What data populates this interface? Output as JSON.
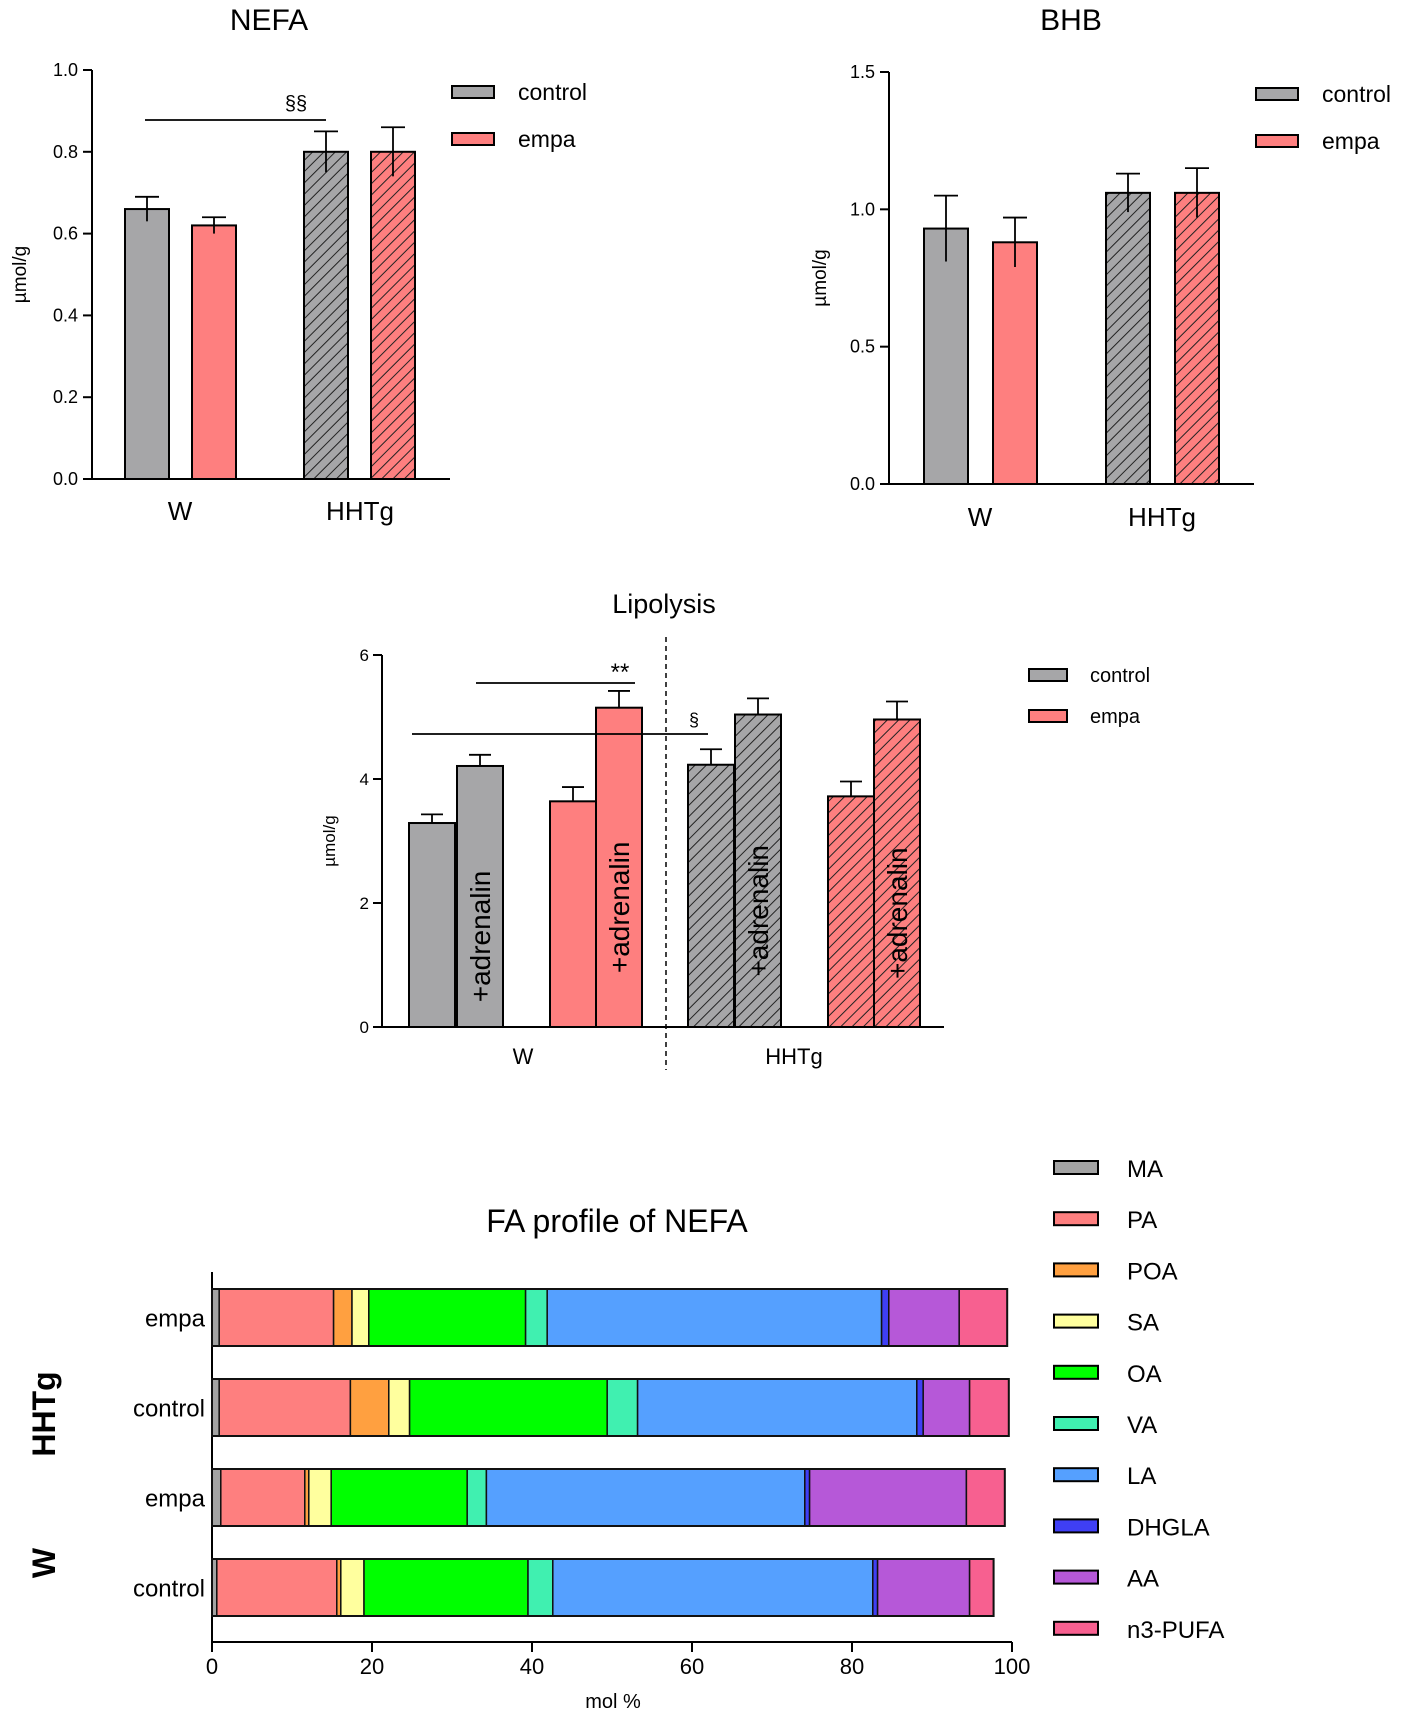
{
  "colors": {
    "control": "#a6a6a8",
    "empa": "#fe7f7f",
    "MA": "#a3a3a3",
    "PA": "#fe7f7f",
    "POA": "#ffa040",
    "SA": "#ffff9e",
    "OA": "#00ff00",
    "VA": "#40f0b0",
    "LA": "#55a0ff",
    "DHGLA": "#3f3ff5",
    "AA": "#b658d8",
    "n3-PUFA": "#f76090"
  },
  "chart_data": [
    {
      "id": "nefa",
      "type": "bar",
      "title": "NEFA",
      "ylabel": "µmol/g",
      "ylim": [
        0,
        1.0
      ],
      "yticks": [
        "0.0",
        "0.2",
        "0.4",
        "0.6",
        "0.8",
        "1.0"
      ],
      "categories": [
        "W",
        "HHTg"
      ],
      "legend": [
        "control",
        "empa"
      ],
      "legend_placement": "top-right",
      "series": [
        {
          "name": "control",
          "values": [
            0.66,
            0.8
          ],
          "errors": [
            0.03,
            0.05
          ]
        },
        {
          "name": "empa",
          "values": [
            0.62,
            0.8
          ],
          "errors": [
            0.02,
            0.06
          ]
        }
      ],
      "hatched_category": "HHTg",
      "annotations": [
        {
          "text": "§§",
          "from": "W control",
          "to": "HHTg control"
        }
      ]
    },
    {
      "id": "bhb",
      "type": "bar",
      "title": "BHB",
      "ylabel": "µmol/g",
      "ylim": [
        0,
        1.5
      ],
      "yticks": [
        "0.0",
        "0.5",
        "1.0",
        "1.5"
      ],
      "categories": [
        "W",
        "HHTg"
      ],
      "legend": [
        "control",
        "empa"
      ],
      "legend_placement": "top-right",
      "series": [
        {
          "name": "control",
          "values": [
            0.93,
            1.06
          ],
          "errors": [
            0.12,
            0.07
          ]
        },
        {
          "name": "empa",
          "values": [
            0.88,
            1.06
          ],
          "errors": [
            0.09,
            0.09
          ]
        }
      ],
      "hatched_category": "HHTg",
      "annotations": []
    },
    {
      "id": "lipolysis",
      "type": "bar",
      "title": "Lipolysis",
      "ylabel": "µmol/g",
      "ylim": [
        0,
        6
      ],
      "yticks": [
        "0",
        "2",
        "4",
        "6"
      ],
      "categories": [
        "W",
        "HHTg"
      ],
      "legend": [
        "control",
        "empa"
      ],
      "legend_placement": "top-right",
      "bar_label": "+adrenalin",
      "bars": [
        {
          "group": "W",
          "series": "control",
          "adrenalin": false,
          "value": 3.29,
          "error": 0.14
        },
        {
          "group": "W",
          "series": "control",
          "adrenalin": true,
          "value": 4.21,
          "error": 0.18
        },
        {
          "group": "W",
          "series": "empa",
          "adrenalin": false,
          "value": 3.64,
          "error": 0.23
        },
        {
          "group": "W",
          "series": "empa",
          "adrenalin": true,
          "value": 5.15,
          "error": 0.27
        },
        {
          "group": "HHTg",
          "series": "control",
          "adrenalin": false,
          "value": 4.23,
          "error": 0.25
        },
        {
          "group": "HHTg",
          "series": "control",
          "adrenalin": true,
          "value": 5.04,
          "error": 0.26
        },
        {
          "group": "HHTg",
          "series": "empa",
          "adrenalin": false,
          "value": 3.72,
          "error": 0.24
        },
        {
          "group": "HHTg",
          "series": "empa",
          "adrenalin": true,
          "value": 4.96,
          "error": 0.29
        }
      ],
      "annotations": [
        {
          "text": "**",
          "from": "W control +adrenalin",
          "to": "W empa +adrenalin"
        },
        {
          "text": "§",
          "from": "W control",
          "to": "HHTg control"
        }
      ]
    },
    {
      "id": "fa_profile",
      "type": "bar",
      "orientation": "horizontal-stacked",
      "title": "FA profile of NEFA",
      "xlabel": "mol %",
      "xlim": [
        0,
        100
      ],
      "xticks": [
        "0",
        "20",
        "40",
        "60",
        "80",
        "100"
      ],
      "groups": [
        "HHTg",
        "W"
      ],
      "legend": [
        "MA",
        "PA",
        "POA",
        "SA",
        "OA",
        "VA",
        "LA",
        "DHGLA",
        "AA",
        "n3-PUFA"
      ],
      "legend_placement": "right",
      "rows": [
        {
          "group": "HHTg",
          "label": "empa",
          "values": [
            0.9,
            14.3,
            2.3,
            2.1,
            19.6,
            2.7,
            41.8,
            0.9,
            8.8,
            6.0
          ]
        },
        {
          "group": "HHTg",
          "label": "control",
          "values": [
            0.9,
            16.4,
            4.8,
            2.6,
            24.7,
            3.8,
            34.9,
            0.8,
            5.8,
            4.9
          ]
        },
        {
          "group": "W",
          "label": "empa",
          "values": [
            1.1,
            10.5,
            0.5,
            2.8,
            17.0,
            2.4,
            39.8,
            0.6,
            19.6,
            4.8
          ]
        },
        {
          "group": "W",
          "label": "control",
          "values": [
            0.6,
            15.0,
            0.5,
            2.9,
            20.5,
            3.1,
            40.0,
            0.6,
            11.5,
            3.0
          ]
        }
      ]
    }
  ]
}
